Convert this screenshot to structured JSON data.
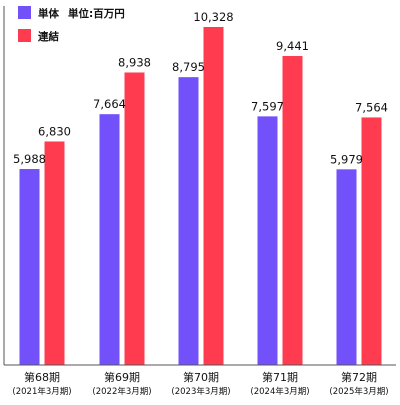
{
  "chart_data": {
    "type": "bar",
    "unit_label": "単位:百万円",
    "categories": [
      {
        "label": "第68期",
        "sublabel": "(2021年3月期)"
      },
      {
        "label": "第69期",
        "sublabel": "(2022年3月期)"
      },
      {
        "label": "第70期",
        "sublabel": "(2023年3月期)"
      },
      {
        "label": "第71期",
        "sublabel": "(2024年3月期)"
      },
      {
        "label": "第72期",
        "sublabel": "(2025年3月期)"
      }
    ],
    "series": [
      {
        "name": "単体",
        "color": "#7251fb",
        "values": [
          5988,
          7664,
          8795,
          7597,
          5979
        ],
        "labels": [
          "5,988",
          "7,664",
          "8,795",
          "7,597",
          "5,979"
        ]
      },
      {
        "name": "連結",
        "color": "#fe3b4f",
        "values": [
          6830,
          8938,
          10328,
          9441,
          7564
        ],
        "labels": [
          "6,830",
          "8,938",
          "10,328",
          "9,441",
          "7,564"
        ]
      }
    ],
    "ylim": [
      0,
      11000
    ],
    "legend_position": "top-left",
    "grid": false,
    "axis_color": "#555555"
  }
}
